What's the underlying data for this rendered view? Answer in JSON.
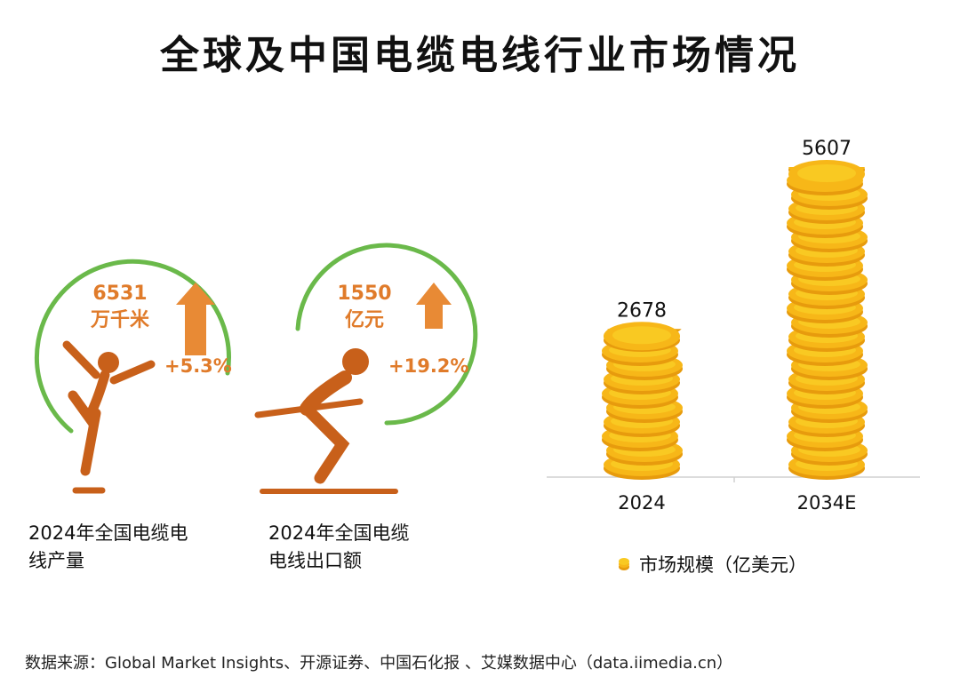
{
  "title": "全球及中国电缆电线行业市场情况",
  "stats": [
    {
      "icon": "figure-skater-icon",
      "value": "6531",
      "unit": "万千米",
      "growth": "+5.3%",
      "caption_line1": "2024年全国电缆电",
      "caption_line2": "线产量"
    },
    {
      "icon": "skier-icon",
      "value": "1550",
      "unit": "亿元",
      "growth": "+19.2%",
      "caption_line1": "2024年全国电缆",
      "caption_line2": "电线出口额"
    }
  ],
  "colors": {
    "accent_orange": "#e07b2a",
    "ring_green": "#6ab94a",
    "figure_brown": "#c8601a",
    "coin_gold": "#f7b718",
    "coin_face": "#f9c922",
    "coin_edge": "#e79b0d"
  },
  "chart_data": {
    "type": "bar",
    "categories": [
      "2024",
      "2034E"
    ],
    "values": [
      2678,
      5607
    ],
    "value_labels": [
      "2678",
      "5607"
    ],
    "legend": "市场规模（亿美元）",
    "legend_icon": "coin-icon",
    "ylim": [
      0,
      5607
    ]
  },
  "source": "数据来源：Global Market Insights、开源证券、中国石化报 、艾媒数据中心（data.iimedia.cn）"
}
